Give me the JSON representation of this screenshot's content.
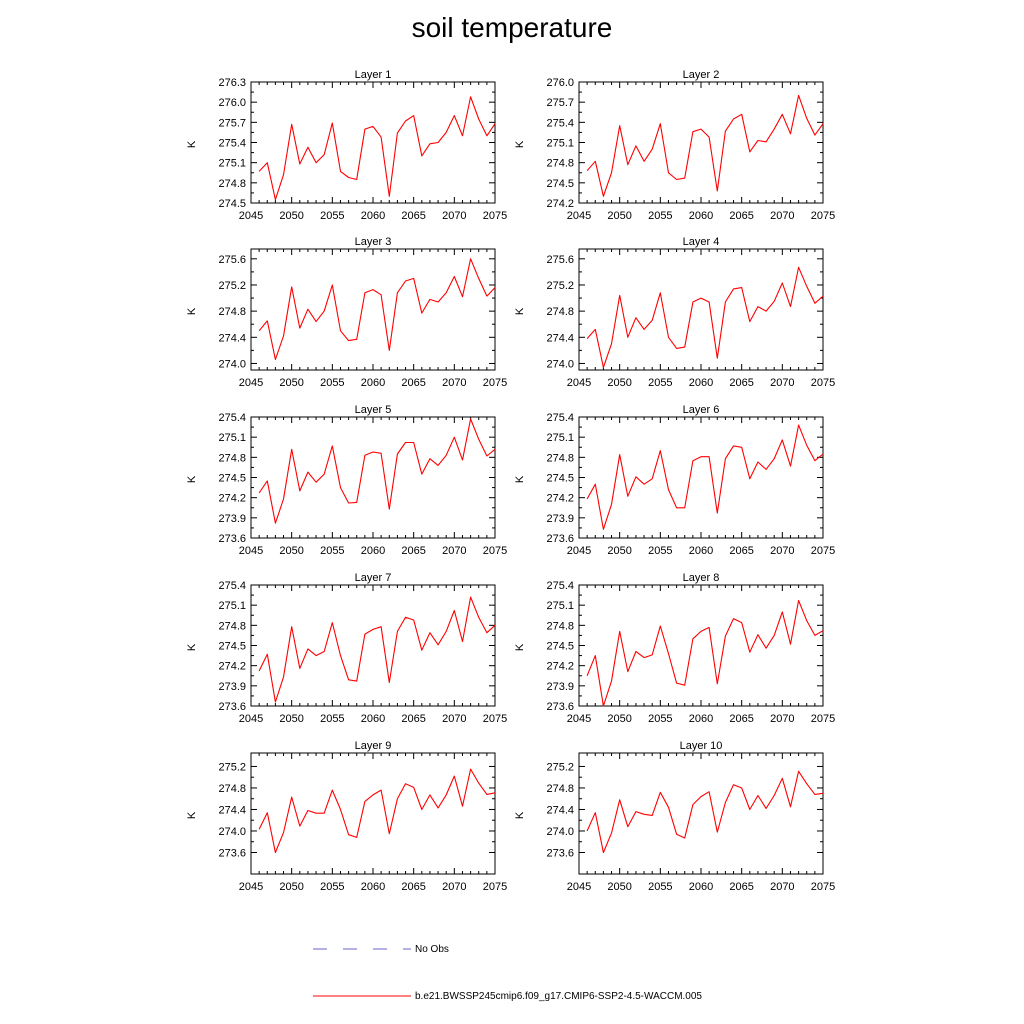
{
  "chart_data": {
    "type": "line",
    "title": "soil temperature",
    "x": [
      2046,
      2047,
      2048,
      2049,
      2050,
      2051,
      2052,
      2053,
      2054,
      2055,
      2056,
      2057,
      2058,
      2059,
      2060,
      2061,
      2062,
      2063,
      2064,
      2065,
      2066,
      2067,
      2068,
      2069,
      2070,
      2071,
      2072,
      2073,
      2074,
      2075
    ],
    "xlim": [
      2045,
      2075
    ],
    "xticks": [
      "2045",
      "2050",
      "2055",
      "2060",
      "2065",
      "2070",
      "2075"
    ],
    "ylabel": "K",
    "series_color": "#ff0000",
    "panels": [
      {
        "title": "Layer 1",
        "ylim": [
          274.5,
          276.3
        ],
        "yticks": [
          "274.5",
          "274.8",
          "275.1",
          "275.4",
          "275.7",
          "276.0",
          "276.3"
        ],
        "values": [
          274.97,
          275.1,
          274.55,
          274.92,
          275.67,
          275.08,
          275.33,
          275.1,
          275.22,
          275.69,
          274.97,
          274.88,
          274.85,
          275.6,
          275.64,
          275.48,
          274.6,
          275.54,
          275.72,
          275.8,
          275.2,
          275.38,
          275.4,
          275.55,
          275.8,
          275.5,
          276.08,
          275.75,
          275.5,
          275.68
        ]
      },
      {
        "title": "Layer 2",
        "ylim": [
          274.2,
          276.0
        ],
        "yticks": [
          "274.2",
          "274.5",
          "274.8",
          "275.1",
          "275.4",
          "275.7",
          "276.0"
        ],
        "values": [
          274.68,
          274.82,
          274.3,
          274.65,
          275.35,
          274.77,
          275.05,
          274.82,
          275.0,
          275.38,
          274.65,
          274.55,
          274.57,
          275.26,
          275.3,
          275.18,
          274.38,
          275.27,
          275.45,
          275.52,
          274.96,
          275.13,
          275.11,
          275.3,
          275.52,
          275.23,
          275.8,
          275.46,
          275.21,
          275.38
        ]
      },
      {
        "title": "Layer 3",
        "ylim": [
          273.9,
          275.75
        ],
        "yticks": [
          "274.0",
          "274.4",
          "274.8",
          "275.2",
          "275.6"
        ],
        "values": [
          274.5,
          274.65,
          274.06,
          274.42,
          275.17,
          274.54,
          274.83,
          274.64,
          274.8,
          275.2,
          274.5,
          274.35,
          274.37,
          275.08,
          275.13,
          275.05,
          274.2,
          275.08,
          275.26,
          275.3,
          274.77,
          274.98,
          274.94,
          275.08,
          275.33,
          275.02,
          275.6,
          275.3,
          275.03,
          275.16
        ]
      },
      {
        "title": "Layer 4",
        "ylim": [
          273.9,
          275.75
        ],
        "yticks": [
          "274.0",
          "274.4",
          "274.8",
          "275.2",
          "275.6"
        ],
        "values": [
          274.38,
          274.52,
          273.94,
          274.3,
          275.04,
          274.4,
          274.7,
          274.52,
          274.66,
          275.08,
          274.4,
          274.23,
          274.25,
          274.94,
          275.0,
          274.94,
          274.08,
          274.94,
          275.14,
          275.16,
          274.64,
          274.87,
          274.8,
          274.95,
          275.23,
          274.87,
          275.47,
          275.18,
          274.92,
          275.03
        ]
      },
      {
        "title": "Layer 5",
        "ylim": [
          273.6,
          275.4
        ],
        "yticks": [
          "273.6",
          "273.9",
          "274.2",
          "274.5",
          "274.8",
          "275.1",
          "275.4"
        ],
        "values": [
          274.27,
          274.45,
          273.82,
          274.18,
          274.92,
          274.3,
          274.58,
          274.43,
          274.55,
          274.97,
          274.35,
          274.12,
          274.13,
          274.83,
          274.88,
          274.86,
          274.03,
          274.85,
          275.02,
          275.02,
          274.55,
          274.78,
          274.68,
          274.83,
          275.1,
          274.76,
          275.37,
          275.07,
          274.82,
          274.92
        ]
      },
      {
        "title": "Layer 6",
        "ylim": [
          273.6,
          275.4
        ],
        "yticks": [
          "273.6",
          "273.9",
          "274.2",
          "274.5",
          "274.8",
          "275.1",
          "275.4"
        ],
        "values": [
          274.18,
          274.4,
          273.73,
          274.1,
          274.84,
          274.22,
          274.51,
          274.4,
          274.48,
          274.9,
          274.32,
          274.05,
          274.05,
          274.75,
          274.81,
          274.81,
          273.97,
          274.78,
          274.97,
          274.95,
          274.48,
          274.73,
          274.62,
          274.78,
          275.06,
          274.67,
          275.28,
          274.98,
          274.75,
          274.85
        ]
      },
      {
        "title": "Layer 7",
        "ylim": [
          273.6,
          275.4
        ],
        "yticks": [
          "273.6",
          "273.9",
          "274.2",
          "274.5",
          "274.8",
          "275.1",
          "275.4"
        ],
        "values": [
          274.12,
          274.37,
          273.66,
          274.03,
          274.78,
          274.16,
          274.45,
          274.35,
          274.41,
          274.84,
          274.35,
          273.99,
          273.97,
          274.67,
          274.74,
          274.78,
          273.95,
          274.71,
          274.92,
          274.88,
          274.43,
          274.69,
          274.51,
          274.71,
          275.02,
          274.56,
          275.22,
          274.92,
          274.69,
          274.8
        ]
      },
      {
        "title": "Layer 8",
        "ylim": [
          273.6,
          275.4
        ],
        "yticks": [
          "273.6",
          "273.9",
          "274.2",
          "274.5",
          "274.8",
          "275.1",
          "275.4"
        ],
        "values": [
          274.05,
          274.35,
          273.6,
          273.97,
          274.71,
          274.11,
          274.41,
          274.32,
          274.36,
          274.79,
          274.38,
          273.94,
          273.91,
          274.6,
          274.71,
          274.77,
          273.93,
          274.64,
          274.9,
          274.84,
          274.4,
          274.66,
          274.46,
          274.65,
          275.0,
          274.52,
          275.17,
          274.87,
          274.65,
          274.72
        ]
      },
      {
        "title": "Layer 9",
        "ylim": [
          273.2,
          275.45
        ],
        "yticks": [
          "273.6",
          "274.0",
          "274.4",
          "274.8",
          "275.2"
        ],
        "values": [
          274.03,
          274.34,
          273.6,
          273.97,
          274.63,
          274.09,
          274.38,
          274.33,
          274.33,
          274.76,
          274.4,
          273.93,
          273.88,
          274.55,
          274.67,
          274.76,
          273.95,
          274.6,
          274.88,
          274.81,
          274.4,
          274.67,
          274.43,
          274.67,
          275.02,
          274.46,
          275.15,
          274.89,
          274.68,
          274.71
        ]
      },
      {
        "title": "Layer 10",
        "ylim": [
          273.2,
          275.45
        ],
        "yticks": [
          "273.6",
          "274.0",
          "274.4",
          "274.8",
          "275.2"
        ],
        "values": [
          274.0,
          274.34,
          273.6,
          273.96,
          274.58,
          274.08,
          274.36,
          274.31,
          274.29,
          274.72,
          274.44,
          273.94,
          273.87,
          274.49,
          274.64,
          274.73,
          273.98,
          274.53,
          274.86,
          274.8,
          274.4,
          274.66,
          274.42,
          274.66,
          274.98,
          274.45,
          275.11,
          274.88,
          274.68,
          274.7
        ]
      }
    ],
    "legend": [
      {
        "label": "No Obs",
        "color": "#6666cc",
        "style": "dashed"
      },
      {
        "label": "b.e21.BWSSP245cmip6.f09_g17.CMIP6-SSP2-4.5-WACCM.005",
        "color": "#ff0000",
        "style": "solid"
      }
    ]
  }
}
